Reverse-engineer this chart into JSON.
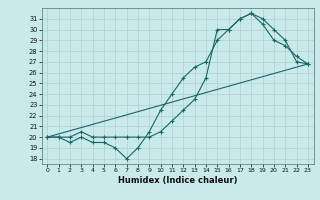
{
  "xlabel": "Humidex (Indice chaleur)",
  "background_color": "#c8eaea",
  "grid_color": "#b0d0d0",
  "line_color": "#1a6868",
  "xlim": [
    -0.5,
    23.5
  ],
  "ylim": [
    17.5,
    32.0
  ],
  "xticks": [
    0,
    1,
    2,
    3,
    4,
    5,
    6,
    7,
    8,
    9,
    10,
    11,
    12,
    13,
    14,
    15,
    16,
    17,
    18,
    19,
    20,
    21,
    22,
    23
  ],
  "yticks": [
    18,
    19,
    20,
    21,
    22,
    23,
    24,
    25,
    26,
    27,
    28,
    29,
    30,
    31
  ],
  "line1_x": [
    0,
    1,
    2,
    3,
    4,
    5,
    6,
    7,
    8,
    9,
    10,
    11,
    12,
    13,
    14,
    15,
    16,
    17,
    18,
    19,
    20,
    21,
    22,
    23
  ],
  "line1_y": [
    20.0,
    20.0,
    19.5,
    20.0,
    19.5,
    19.5,
    19.0,
    18.0,
    19.0,
    20.5,
    22.5,
    24.0,
    25.5,
    26.5,
    27.0,
    29.0,
    30.0,
    31.0,
    31.5,
    30.5,
    29.0,
    28.5,
    27.5,
    26.8
  ],
  "line2_x": [
    0,
    1,
    2,
    3,
    4,
    5,
    6,
    7,
    8,
    9,
    10,
    11,
    12,
    13,
    14,
    15,
    16,
    17,
    18,
    19,
    20,
    21,
    22,
    23
  ],
  "line2_y": [
    20.0,
    20.0,
    20.0,
    20.5,
    20.0,
    20.0,
    20.0,
    20.0,
    20.0,
    20.0,
    20.5,
    21.5,
    22.5,
    23.5,
    25.5,
    30.0,
    30.0,
    31.0,
    31.5,
    31.0,
    30.0,
    29.0,
    27.0,
    26.8
  ],
  "line3_x": [
    0,
    23
  ],
  "line3_y": [
    20.0,
    26.8
  ]
}
